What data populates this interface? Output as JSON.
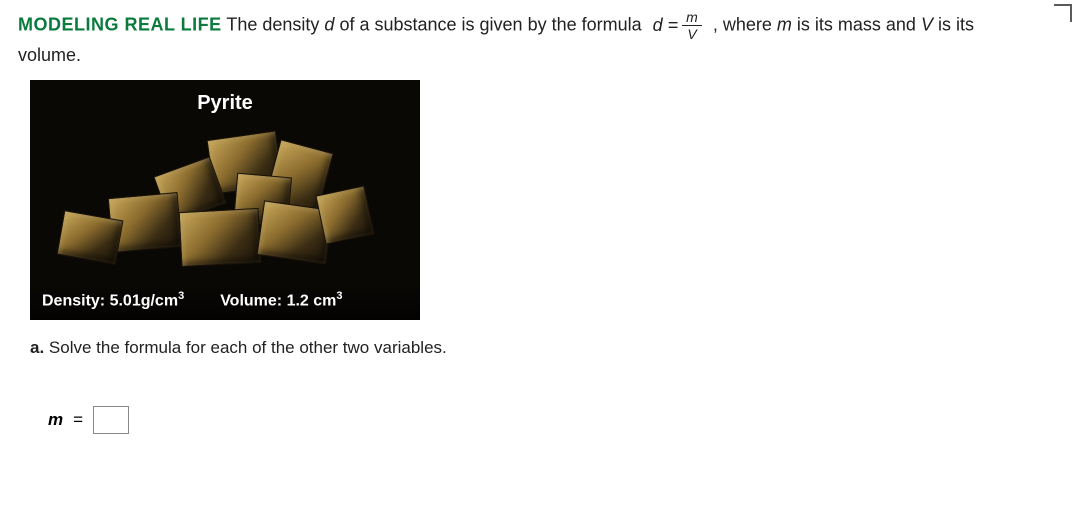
{
  "heading": {
    "tag": "MODELING REAL LIFE",
    "text_before": "The density ",
    "var_d": "d",
    "text_mid1": " of a substance is given by the formula ",
    "formula_lhs": "d =",
    "frac_num": "m",
    "frac_den": "V",
    "text_after": ", where ",
    "var_m": "m",
    "text_mid2": " is its mass and ",
    "var_V": "V",
    "text_end": " is its",
    "line2": "volume."
  },
  "photo": {
    "title": "Pyrite",
    "density_label": "Density: 5.01g/cm",
    "density_exp": "3",
    "volume_label": "Volume: 1.2 cm",
    "volume_exp": "3"
  },
  "part": {
    "label": "a.",
    "text": "Solve the formula for each of the other two variables."
  },
  "answer": {
    "var": "m",
    "eq": "="
  },
  "colors": {
    "tag": "#0a7a3d",
    "text": "#222222",
    "photo_bg": "#0a0805",
    "photo_text": "#ffffff"
  }
}
